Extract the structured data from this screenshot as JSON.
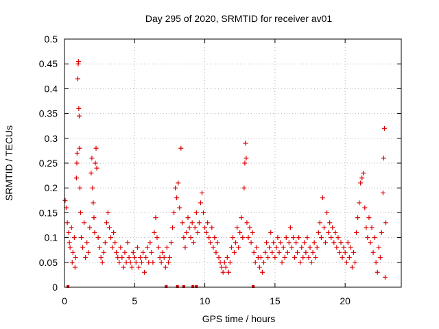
{
  "chart_data": {
    "type": "scatter",
    "title": "Day 295 of 2020, SRMTID for receiver av01",
    "xlabel": "GPS time / hours",
    "ylabel": "SRMTID / TECUs",
    "xlim": [
      0,
      24
    ],
    "ylim": [
      0,
      0.5
    ],
    "xticks": [
      0,
      5,
      10,
      15,
      20
    ],
    "xtick_labels": [
      "0",
      "5",
      "10",
      "15",
      "20"
    ],
    "yticks": [
      0,
      0.05,
      0.1,
      0.15,
      0.2,
      0.25,
      0.3,
      0.35,
      0.4,
      0.45,
      0.5
    ],
    "ytick_labels": [
      "0",
      "0.05",
      "0.1",
      "0.15",
      "0.2",
      "0.25",
      "0.3",
      "0.35",
      "0.4",
      "0.45",
      "0.5"
    ],
    "grid": true,
    "marker": "+",
    "color": "#dd0000",
    "series": [
      {
        "name": "SRMTID",
        "points": [
          [
            0.05,
            0.175
          ],
          [
            0.12,
            0.16
          ],
          [
            0.2,
            0.13
          ],
          [
            0.3,
            0.11
          ],
          [
            0.35,
            0.09
          ],
          [
            0.4,
            0.08
          ],
          [
            0.5,
            0.12
          ],
          [
            0.55,
            0.05
          ],
          [
            0.6,
            0.07
          ],
          [
            0.7,
            0.1
          ],
          [
            0.75,
            0.04
          ],
          [
            0.8,
            0.06
          ],
          [
            0.85,
            0.22
          ],
          [
            0.88,
            0.25
          ],
          [
            0.9,
            0.27
          ],
          [
            0.95,
            0.42
          ],
          [
            0.98,
            0.45
          ],
          [
            1.0,
            0.455
          ],
          [
            1.02,
            0.36
          ],
          [
            1.05,
            0.345
          ],
          [
            1.08,
            0.28
          ],
          [
            1.1,
            0.2
          ],
          [
            1.15,
            0.15
          ],
          [
            1.2,
            0.1
          ],
          [
            1.3,
            0.08
          ],
          [
            1.4,
            0.13
          ],
          [
            1.5,
            0.06
          ],
          [
            1.6,
            0.09
          ],
          [
            1.7,
            0.07
          ],
          [
            1.8,
            0.12
          ],
          [
            1.9,
            0.23
          ],
          [
            1.95,
            0.26
          ],
          [
            2.0,
            0.2
          ],
          [
            2.05,
            0.17
          ],
          [
            2.1,
            0.14
          ],
          [
            2.15,
            0.11
          ],
          [
            2.2,
            0.25
          ],
          [
            2.25,
            0.28
          ],
          [
            2.3,
            0.24
          ],
          [
            2.4,
            0.1
          ],
          [
            2.5,
            0.08
          ],
          [
            2.6,
            0.06
          ],
          [
            2.7,
            0.05
          ],
          [
            2.8,
            0.07
          ],
          [
            2.9,
            0.09
          ],
          [
            3.0,
            0.13
          ],
          [
            3.1,
            0.15
          ],
          [
            3.2,
            0.12
          ],
          [
            3.3,
            0.1
          ],
          [
            3.4,
            0.08
          ],
          [
            3.5,
            0.11
          ],
          [
            3.6,
            0.09
          ],
          [
            3.7,
            0.07
          ],
          [
            3.8,
            0.06
          ],
          [
            3.9,
            0.05
          ],
          [
            4.0,
            0.08
          ],
          [
            4.1,
            0.06
          ],
          [
            4.2,
            0.04
          ],
          [
            4.3,
            0.07
          ],
          [
            4.4,
            0.05
          ],
          [
            4.5,
            0.09
          ],
          [
            4.6,
            0.06
          ],
          [
            4.7,
            0.05
          ],
          [
            4.8,
            0.04
          ],
          [
            4.9,
            0.07
          ],
          [
            5.0,
            0.06
          ],
          [
            5.1,
            0.05
          ],
          [
            5.2,
            0.08
          ],
          [
            5.3,
            0.04
          ],
          [
            5.4,
            0.06
          ],
          [
            5.5,
            0.05
          ],
          [
            5.6,
            0.07
          ],
          [
            5.7,
            0.03
          ],
          [
            5.8,
            0.06
          ],
          [
            5.9,
            0.08
          ],
          [
            6.0,
            0.05
          ],
          [
            6.1,
            0.09
          ],
          [
            6.2,
            0.07
          ],
          [
            6.3,
            0.05
          ],
          [
            6.4,
            0.11
          ],
          [
            6.5,
            0.14
          ],
          [
            6.6,
            0.1
          ],
          [
            6.7,
            0.08
          ],
          [
            6.8,
            0.06
          ],
          [
            6.9,
            0.05
          ],
          [
            7.0,
            0.07
          ],
          [
            7.1,
            0.06
          ],
          [
            7.2,
            0.04
          ],
          [
            7.3,
            0.08
          ],
          [
            7.4,
            0.05
          ],
          [
            7.5,
            0.06
          ],
          [
            7.6,
            0.09
          ],
          [
            7.7,
            0.12
          ],
          [
            7.8,
            0.15
          ],
          [
            7.9,
            0.2
          ],
          [
            8.0,
            0.18
          ],
          [
            8.1,
            0.21
          ],
          [
            8.2,
            0.16
          ],
          [
            8.3,
            0.28
          ],
          [
            8.4,
            0.13
          ],
          [
            8.5,
            0.1
          ],
          [
            8.6,
            0.08
          ],
          [
            8.7,
            0.11
          ],
          [
            8.8,
            0.14
          ],
          [
            8.9,
            0.12
          ],
          [
            9.0,
            0.1
          ],
          [
            9.1,
            0.13
          ],
          [
            9.2,
            0.09
          ],
          [
            9.3,
            0.12
          ],
          [
            9.4,
            0.15
          ],
          [
            9.5,
            0.11
          ],
          [
            9.6,
            0.13
          ],
          [
            9.7,
            0.17
          ],
          [
            9.8,
            0.19
          ],
          [
            9.9,
            0.15
          ],
          [
            10.0,
            0.12
          ],
          [
            10.1,
            0.11
          ],
          [
            10.2,
            0.13
          ],
          [
            10.3,
            0.1
          ],
          [
            10.4,
            0.09
          ],
          [
            10.5,
            0.12
          ],
          [
            10.6,
            0.08
          ],
          [
            10.7,
            0.1
          ],
          [
            10.8,
            0.07
          ],
          [
            10.9,
            0.09
          ],
          [
            11.0,
            0.06
          ],
          [
            11.1,
            0.05
          ],
          [
            11.2,
            0.04
          ],
          [
            11.3,
            0.03
          ],
          [
            11.4,
            0.05
          ],
          [
            11.5,
            0.04
          ],
          [
            11.6,
            0.06
          ],
          [
            11.7,
            0.03
          ],
          [
            11.8,
            0.05
          ],
          [
            11.9,
            0.08
          ],
          [
            12.0,
            0.1
          ],
          [
            12.1,
            0.07
          ],
          [
            12.2,
            0.09
          ],
          [
            12.3,
            0.12
          ],
          [
            12.4,
            0.08
          ],
          [
            12.5,
            0.11
          ],
          [
            12.6,
            0.14
          ],
          [
            12.7,
            0.1
          ],
          [
            12.8,
            0.2
          ],
          [
            12.85,
            0.25
          ],
          [
            12.9,
            0.29
          ],
          [
            12.95,
            0.26
          ],
          [
            13.0,
            0.13
          ],
          [
            13.1,
            0.1
          ],
          [
            13.2,
            0.12
          ],
          [
            13.3,
            0.09
          ],
          [
            13.4,
            0.11
          ],
          [
            13.5,
            0.07
          ],
          [
            13.6,
            0.05
          ],
          [
            13.7,
            0.08
          ],
          [
            13.8,
            0.06
          ],
          [
            13.9,
            0.04
          ],
          [
            14.0,
            0.06
          ],
          [
            14.1,
            0.03
          ],
          [
            14.2,
            0.05
          ],
          [
            14.3,
            0.07
          ],
          [
            14.4,
            0.09
          ],
          [
            14.5,
            0.06
          ],
          [
            14.6,
            0.08
          ],
          [
            14.7,
            0.11
          ],
          [
            14.8,
            0.07
          ],
          [
            14.9,
            0.09
          ],
          [
            15.0,
            0.06
          ],
          [
            15.1,
            0.08
          ],
          [
            15.2,
            0.1
          ],
          [
            15.3,
            0.07
          ],
          [
            15.4,
            0.09
          ],
          [
            15.5,
            0.05
          ],
          [
            15.6,
            0.08
          ],
          [
            15.7,
            0.06
          ],
          [
            15.8,
            0.1
          ],
          [
            15.9,
            0.07
          ],
          [
            16.0,
            0.09
          ],
          [
            16.1,
            0.12
          ],
          [
            16.2,
            0.08
          ],
          [
            16.3,
            0.1
          ],
          [
            16.4,
            0.06
          ],
          [
            16.5,
            0.09
          ],
          [
            16.6,
            0.07
          ],
          [
            16.7,
            0.1
          ],
          [
            16.8,
            0.05
          ],
          [
            16.9,
            0.08
          ],
          [
            17.0,
            0.06
          ],
          [
            17.1,
            0.09
          ],
          [
            17.2,
            0.07
          ],
          [
            17.3,
            0.1
          ],
          [
            17.4,
            0.06
          ],
          [
            17.5,
            0.08
          ],
          [
            17.6,
            0.05
          ],
          [
            17.7,
            0.07
          ],
          [
            17.8,
            0.09
          ],
          [
            17.9,
            0.06
          ],
          [
            18.0,
            0.08
          ],
          [
            18.1,
            0.11
          ],
          [
            18.2,
            0.13
          ],
          [
            18.3,
            0.1
          ],
          [
            18.4,
            0.18
          ],
          [
            18.5,
            0.12
          ],
          [
            18.6,
            0.09
          ],
          [
            18.7,
            0.15
          ],
          [
            18.8,
            0.11
          ],
          [
            18.9,
            0.13
          ],
          [
            19.0,
            0.1
          ],
          [
            19.1,
            0.12
          ],
          [
            19.2,
            0.09
          ],
          [
            19.3,
            0.11
          ],
          [
            19.4,
            0.08
          ],
          [
            19.5,
            0.1
          ],
          [
            19.6,
            0.07
          ],
          [
            19.7,
            0.09
          ],
          [
            19.8,
            0.06
          ],
          [
            19.9,
            0.08
          ],
          [
            20.0,
            0.07
          ],
          [
            20.1,
            0.05
          ],
          [
            20.2,
            0.09
          ],
          [
            20.3,
            0.06
          ],
          [
            20.4,
            0.08
          ],
          [
            20.5,
            0.04
          ],
          [
            20.6,
            0.07
          ],
          [
            20.7,
            0.05
          ],
          [
            20.8,
            0.11
          ],
          [
            20.9,
            0.14
          ],
          [
            21.0,
            0.17
          ],
          [
            21.1,
            0.21
          ],
          [
            21.2,
            0.22
          ],
          [
            21.3,
            0.23
          ],
          [
            21.4,
            0.16
          ],
          [
            21.5,
            0.12
          ],
          [
            21.6,
            0.1
          ],
          [
            21.7,
            0.14
          ],
          [
            21.8,
            0.09
          ],
          [
            21.9,
            0.12
          ],
          [
            22.0,
            0.07
          ],
          [
            22.1,
            0.1
          ],
          [
            22.2,
            0.05
          ],
          [
            22.3,
            0.03
          ],
          [
            22.4,
            0.08
          ],
          [
            22.5,
            0.06
          ],
          [
            22.6,
            0.11
          ],
          [
            22.7,
            0.19
          ],
          [
            22.75,
            0.26
          ],
          [
            22.8,
            0.32
          ],
          [
            22.85,
            0.02
          ],
          [
            22.9,
            0.13
          ]
        ]
      }
    ],
    "gap_markers_x": [
      0.25,
      7.25,
      8.05,
      8.5,
      9.15,
      9.4,
      13.45
    ]
  }
}
